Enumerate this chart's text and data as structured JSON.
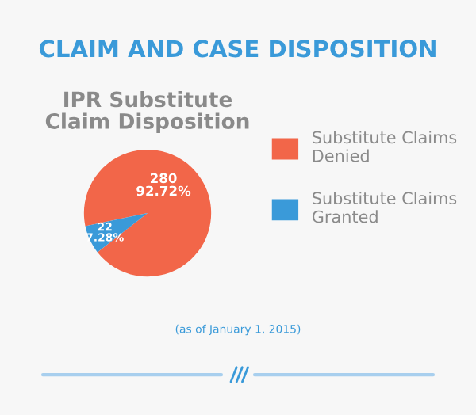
{
  "chart_data": {
    "type": "pie",
    "title": "CLAIM AND CASE DISPOSITION",
    "subtitle": "IPR Substitute\nClaim Disposition",
    "categories": [
      "Substitute Claims\nDenied",
      "Substitute Claims\nGranted"
    ],
    "values": [
      280,
      22
    ],
    "value_labels": [
      "280\n92.72%",
      "22\n7.28%"
    ],
    "colors": [
      "#f26649",
      "#3a9ad9"
    ],
    "legend": "right",
    "annotations": [
      "(as of January 1, 2015)"
    ]
  }
}
